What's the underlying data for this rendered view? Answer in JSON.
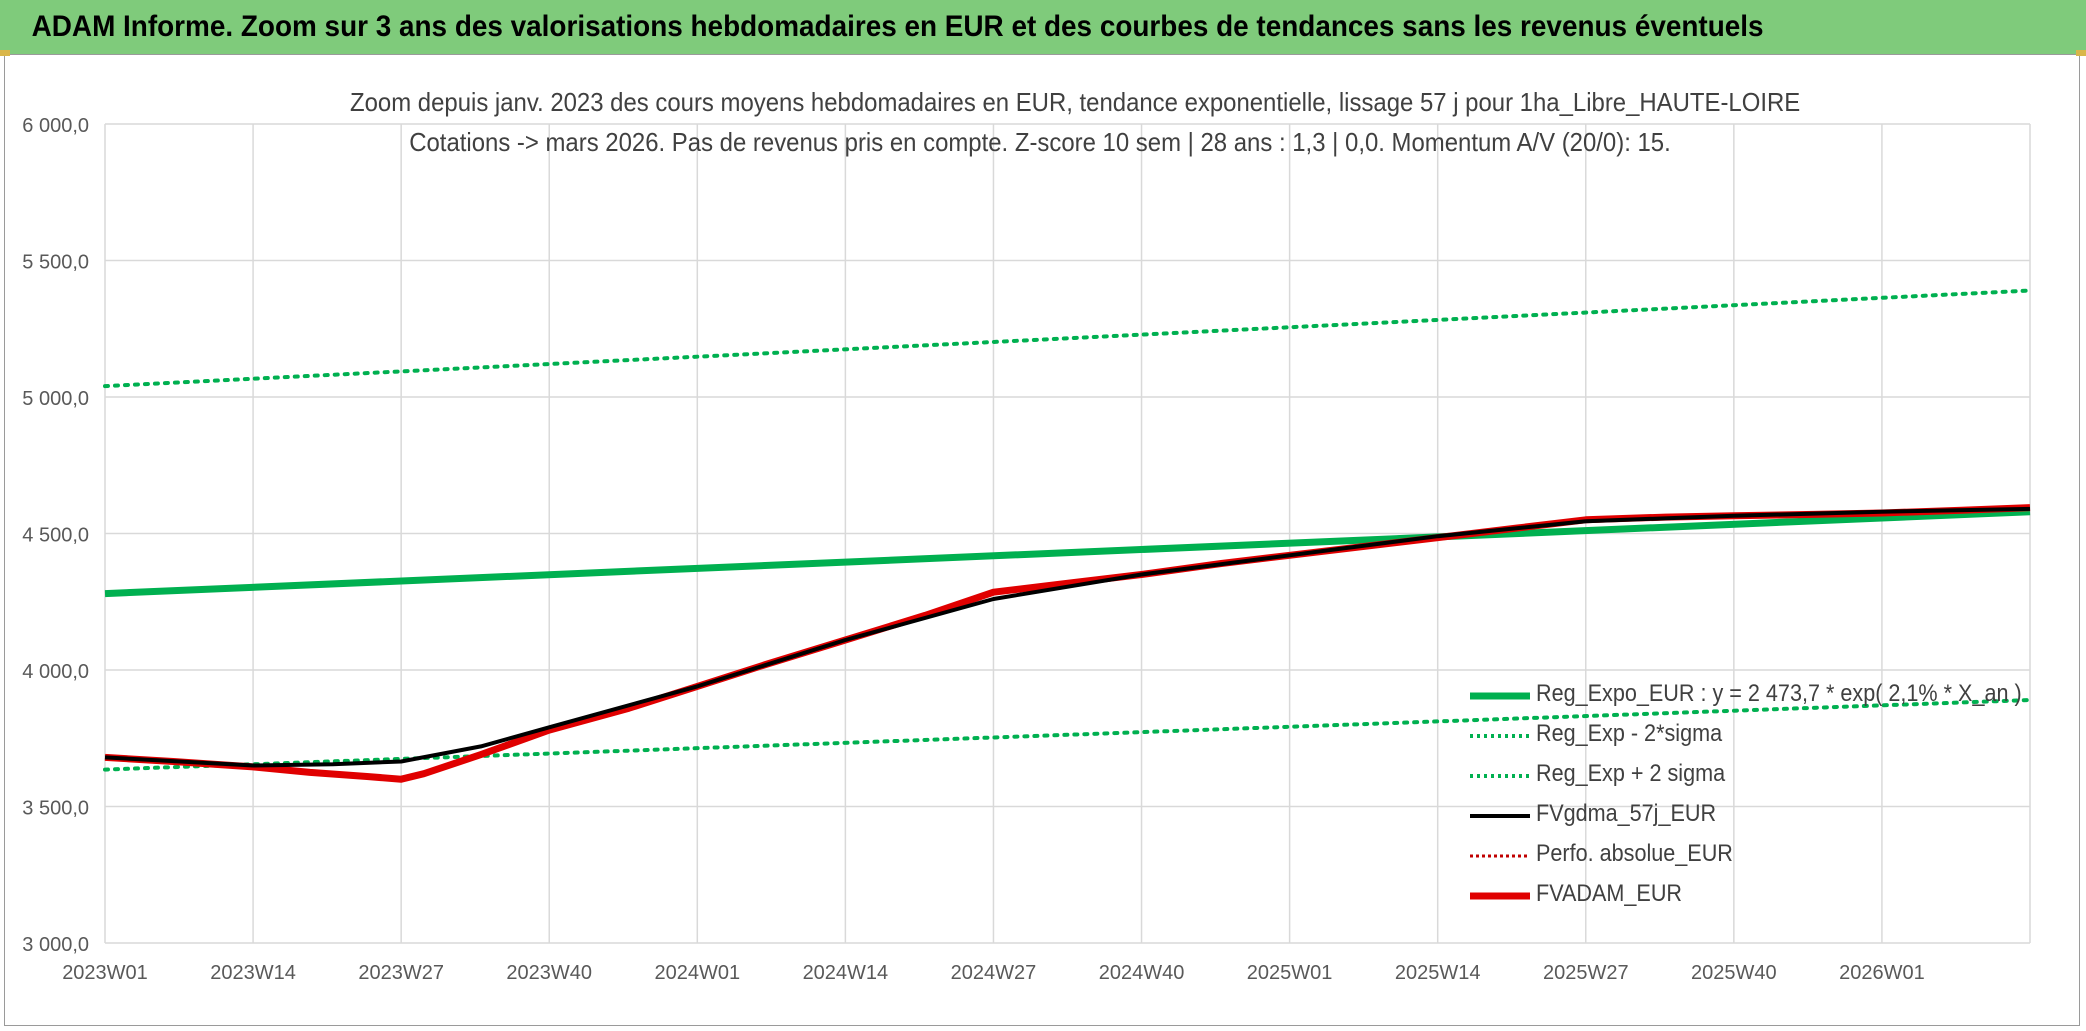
{
  "header": {
    "title": "ADAM Informe. Zoom sur 3 ans des valorisations hebdomadaires en EUR et des courbes de tendances sans les revenus éventuels"
  },
  "chart_data": {
    "type": "line",
    "title_line1": "Zoom depuis janv. 2023 des cours moyens hebdomadaires en EUR, tendance exponentielle, lissage 57 j pour 1ha_Libre_HAUTE-LOIRE",
    "title_line2": "Cotations -> mars 2026. Pas de revenus pris en compte. Z-score 10 sem | 28 ans : 1,3 | 0,0. Momentum A/V (20/0): 15.",
    "xlabel": "",
    "ylabel": "",
    "x_range_weeks": [
      0,
      169
    ],
    "ylim": [
      3000,
      6000
    ],
    "y_ticks": [
      "3 000,0",
      "3 500,0",
      "4 000,0",
      "4 500,0",
      "5 000,0",
      "5 500,0",
      "6 000,0"
    ],
    "y_tick_values": [
      3000,
      3500,
      4000,
      4500,
      5000,
      5500,
      6000
    ],
    "x_tick_labels": [
      "2023W01",
      "2023W14",
      "2023W27",
      "2023W40",
      "2024W01",
      "2024W14",
      "2024W27",
      "2024W40",
      "2025W01",
      "2025W14",
      "2025W27",
      "2025W40",
      "2026W01"
    ],
    "x_tick_positions": [
      0,
      13,
      26,
      39,
      52,
      65,
      78,
      91,
      104,
      117,
      130,
      143,
      156
    ],
    "grid": true,
    "legend_position": "bottom-right",
    "series": [
      {
        "name": "Reg_Expo_EUR : y = 2 473,7 * exp( 2,1% * X_an )",
        "color": "#00b050",
        "style": "solid-thick",
        "x": [
          0,
          169
        ],
        "y": [
          4280,
          4580
        ]
      },
      {
        "name": "Reg_Exp - 2*sigma",
        "color": "#00b050",
        "style": "dotted",
        "x": [
          0,
          169
        ],
        "y": [
          3635,
          3890
        ]
      },
      {
        "name": "Reg_Exp + 2 sigma",
        "color": "#00b050",
        "style": "dotted",
        "x": [
          0,
          169
        ],
        "y": [
          5040,
          5390
        ]
      },
      {
        "name": "FVgdma_57j_EUR",
        "color": "#000000",
        "style": "solid",
        "x": [
          0,
          13,
          20,
          26,
          33,
          39,
          52,
          65,
          78,
          91,
          104,
          117,
          130,
          143,
          156,
          169
        ],
        "y": [
          3680,
          3650,
          3655,
          3665,
          3720,
          3790,
          3940,
          4110,
          4260,
          4350,
          4420,
          4490,
          4545,
          4565,
          4580,
          4590
        ]
      },
      {
        "name": "Perfo. absolue_EUR",
        "color": "#c00000",
        "style": "dotted",
        "x": [],
        "y": []
      },
      {
        "name": "FVADAM_EUR",
        "color": "#e00000",
        "style": "solid-thick",
        "x": [
          0,
          6,
          13,
          18,
          23,
          26,
          28,
          33,
          39,
          46,
          52,
          58,
          65,
          72,
          78,
          85,
          91,
          98,
          104,
          111,
          117,
          124,
          130,
          137,
          143,
          150,
          156,
          163,
          169
        ],
        "y": [
          3680,
          3665,
          3645,
          3625,
          3610,
          3600,
          3620,
          3690,
          3780,
          3860,
          3940,
          4020,
          4110,
          4200,
          4285,
          4320,
          4350,
          4390,
          4420,
          4455,
          4485,
          4520,
          4550,
          4560,
          4565,
          4570,
          4575,
          4585,
          4595
        ]
      }
    ]
  }
}
